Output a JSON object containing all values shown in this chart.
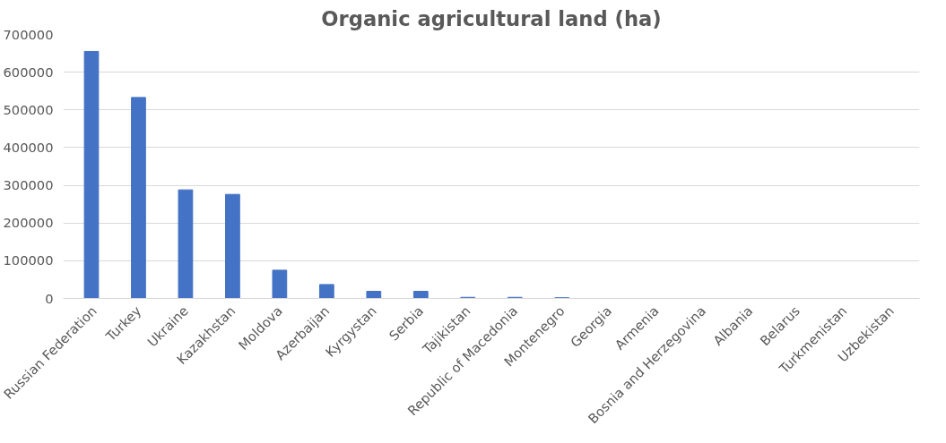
{
  "chart_data": {
    "type": "bar",
    "title": "Organic agricultural land (ha)",
    "categories": [
      "Russian Federation",
      "Turkey",
      "Ukraine",
      "Kazakhstan",
      "Moldova",
      "Azerbaijan",
      "Kyrgystan",
      "Serbia",
      "Tajikistan",
      "Republic of Macedonia",
      "Montenegro",
      "Georgia",
      "Armenia",
      "Bosnia and Herzegovina",
      "Albania",
      "Belarus",
      "Turkmenistan",
      "Uzbekistan"
    ],
    "values": [
      655000,
      533000,
      288000,
      276000,
      75000,
      37000,
      19000,
      19000,
      3000,
      3000,
      2000,
      0,
      0,
      0,
      0,
      0,
      0,
      0
    ],
    "color": "#4472c4",
    "ylim": [
      0,
      700000
    ],
    "yticks": [
      0,
      100000,
      200000,
      300000,
      400000,
      500000,
      600000,
      700000
    ],
    "grid": "y"
  }
}
